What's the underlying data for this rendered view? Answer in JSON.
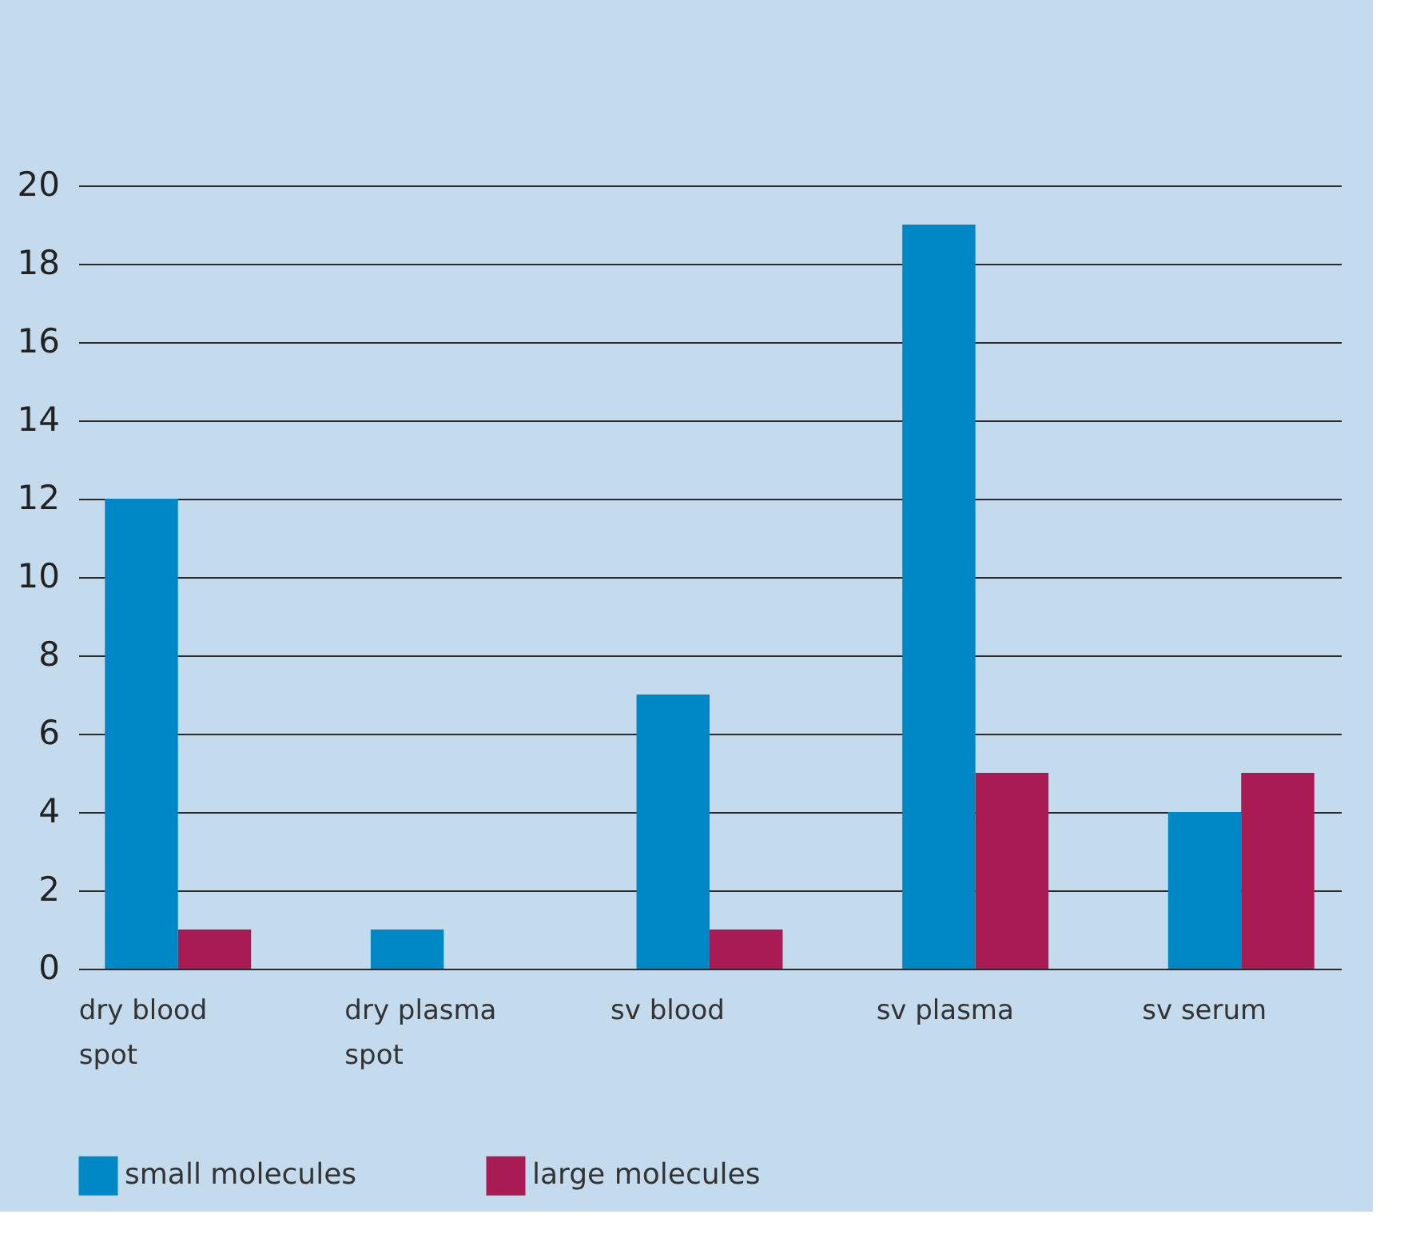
{
  "chart_data": {
    "type": "bar",
    "categories": [
      "dry blood spot",
      "dry plasma spot",
      "sv blood",
      "sv plasma",
      "sv serum"
    ],
    "series": [
      {
        "name": "small molecules",
        "color": "#0088c6",
        "values": [
          12,
          1,
          7,
          19,
          4
        ]
      },
      {
        "name": "large molecules",
        "color": "#a91b53",
        "values": [
          1,
          null,
          1,
          5,
          5
        ]
      }
    ],
    "ylim": [
      0,
      20
    ],
    "yticks": [
      0,
      2,
      4,
      6,
      8,
      10,
      12,
      14,
      16,
      18,
      20
    ],
    "grid": "y",
    "legend": "bottom"
  }
}
